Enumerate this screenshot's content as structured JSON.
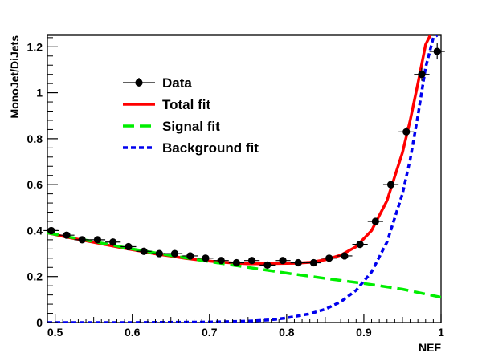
{
  "chart_data": {
    "type": "line",
    "title": "",
    "xlabel": "NEF",
    "ylabel": "MonoJet/DiJets",
    "xlim": [
      0.49,
      1.0
    ],
    "ylim": [
      0,
      1.25
    ],
    "x_ticks": [
      0.5,
      0.6,
      0.7,
      0.8,
      0.9,
      1.0
    ],
    "x_tick_labels": [
      "0.5",
      "0.6",
      "0.7",
      "0.8",
      "0.9",
      "1"
    ],
    "y_ticks": [
      0,
      0.2,
      0.4,
      0.6,
      0.8,
      1.0,
      1.2
    ],
    "y_tick_labels": [
      "0",
      "0.2",
      "0.4",
      "0.6",
      "0.8",
      "1",
      "1.2"
    ],
    "grid": false,
    "legend_position": "top-left",
    "series": [
      {
        "name": "Data",
        "style": "markers",
        "color": "#000000",
        "x": [
          0.495,
          0.515,
          0.535,
          0.555,
          0.575,
          0.595,
          0.615,
          0.635,
          0.655,
          0.675,
          0.695,
          0.715,
          0.735,
          0.755,
          0.775,
          0.795,
          0.815,
          0.835,
          0.855,
          0.875,
          0.895,
          0.915,
          0.935,
          0.955,
          0.975,
          0.995
        ],
        "y": [
          0.4,
          0.38,
          0.36,
          0.36,
          0.35,
          0.33,
          0.31,
          0.3,
          0.3,
          0.29,
          0.28,
          0.27,
          0.26,
          0.27,
          0.25,
          0.27,
          0.26,
          0.26,
          0.28,
          0.29,
          0.34,
          0.44,
          0.6,
          0.83,
          1.08,
          1.18
        ],
        "yerr": [
          0.012,
          0.011,
          0.011,
          0.011,
          0.011,
          0.01,
          0.01,
          0.01,
          0.01,
          0.01,
          0.01,
          0.01,
          0.01,
          0.01,
          0.01,
          0.01,
          0.01,
          0.01,
          0.01,
          0.011,
          0.012,
          0.014,
          0.018,
          0.022,
          0.028,
          0.035
        ]
      },
      {
        "name": "Total fit",
        "style": "solid",
        "color": "#ff0000",
        "x": [
          0.49,
          0.51,
          0.53,
          0.55,
          0.57,
          0.59,
          0.61,
          0.63,
          0.65,
          0.67,
          0.69,
          0.71,
          0.73,
          0.75,
          0.77,
          0.79,
          0.81,
          0.83,
          0.85,
          0.87,
          0.89,
          0.91,
          0.93,
          0.95,
          0.96,
          0.97,
          0.98,
          0.986
        ],
        "y": [
          0.39,
          0.375,
          0.362,
          0.349,
          0.336,
          0.323,
          0.311,
          0.299,
          0.289,
          0.279,
          0.271,
          0.264,
          0.259,
          0.256,
          0.256,
          0.257,
          0.258,
          0.262,
          0.273,
          0.293,
          0.33,
          0.4,
          0.53,
          0.74,
          0.88,
          1.04,
          1.21,
          1.25
        ]
      },
      {
        "name": "Signal fit",
        "style": "dashed",
        "color": "#00ee00",
        "x": [
          0.49,
          0.55,
          0.6,
          0.65,
          0.7,
          0.75,
          0.8,
          0.85,
          0.9,
          0.95,
          1.0
        ],
        "y": [
          0.39,
          0.352,
          0.32,
          0.292,
          0.265,
          0.24,
          0.215,
          0.192,
          0.17,
          0.145,
          0.11
        ]
      },
      {
        "name": "Background fit",
        "style": "dotted",
        "color": "#0000ee",
        "x": [
          0.49,
          0.6,
          0.7,
          0.75,
          0.78,
          0.8,
          0.83,
          0.85,
          0.87,
          0.89,
          0.91,
          0.93,
          0.95,
          0.96,
          0.97,
          0.98,
          0.99,
          0.995
        ],
        "y": [
          0,
          0,
          0.002,
          0.006,
          0.012,
          0.02,
          0.038,
          0.058,
          0.09,
          0.14,
          0.22,
          0.35,
          0.56,
          0.71,
          0.9,
          1.11,
          1.24,
          1.25
        ]
      }
    ]
  }
}
